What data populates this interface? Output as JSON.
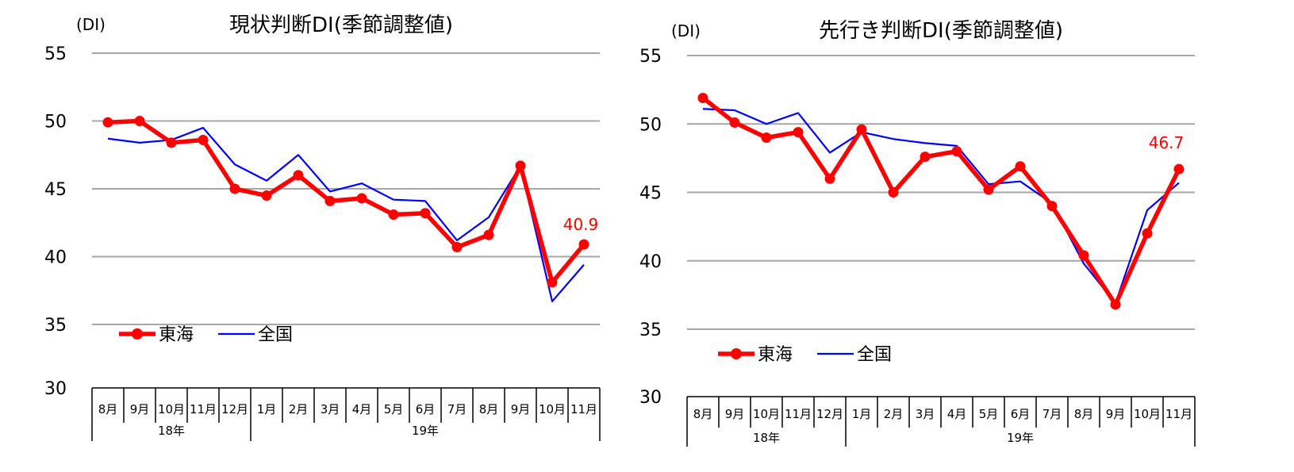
{
  "chart_data": [
    {
      "type": "line",
      "title": "現状判断DI(季節調整値)",
      "ylabel": "(DI)",
      "ylim": [
        30,
        55
      ],
      "yticks": [
        "30",
        "35",
        "40",
        "45",
        "50",
        "55"
      ],
      "grid": true,
      "legend_position": "bottom-left",
      "categories": [
        "8月",
        "9月",
        "10月",
        "11月",
        "12月",
        "1月",
        "2月",
        "3月",
        "4月",
        "5月",
        "6月",
        "7月",
        "8月",
        "9月",
        "10月",
        "11月"
      ],
      "year_groups": [
        {
          "label": "18年",
          "count": 5
        },
        {
          "label": "19年",
          "count": 11
        }
      ],
      "series": [
        {
          "name": "東海",
          "color": "#ff0000",
          "values": [
            49.9,
            50.0,
            48.4,
            48.6,
            45.0,
            44.5,
            46.0,
            44.1,
            44.3,
            43.1,
            43.2,
            40.7,
            41.6,
            46.7,
            38.1,
            40.9
          ]
        },
        {
          "name": "全国",
          "color": "#0000ff",
          "values": [
            48.7,
            48.4,
            48.6,
            49.5,
            46.8,
            45.6,
            47.5,
            44.8,
            45.4,
            44.2,
            44.1,
            41.2,
            42.9,
            46.7,
            36.7,
            39.4
          ]
        }
      ],
      "annotation": {
        "text": "40.9",
        "color": "#ff0000"
      }
    },
    {
      "type": "line",
      "title": "先行き判断DI(季節調整値)",
      "ylabel": "(DI)",
      "ylim": [
        30,
        55
      ],
      "yticks": [
        "30",
        "35",
        "40",
        "45",
        "50",
        "55"
      ],
      "grid": true,
      "legend_position": "bottom-left",
      "categories": [
        "8月",
        "9月",
        "10月",
        "11月",
        "12月",
        "1月",
        "2月",
        "3月",
        "4月",
        "5月",
        "6月",
        "7月",
        "8月",
        "9月",
        "10月",
        "11月"
      ],
      "year_groups": [
        {
          "label": "18年",
          "count": 5
        },
        {
          "label": "19年",
          "count": 11
        }
      ],
      "series": [
        {
          "name": "東海",
          "color": "#ff0000",
          "values": [
            51.9,
            50.1,
            49.0,
            49.4,
            46.0,
            49.6,
            45.0,
            47.6,
            48.0,
            45.2,
            46.9,
            44.0,
            40.4,
            36.8,
            42.0,
            46.7
          ]
        },
        {
          "name": "全国",
          "color": "#0000ff",
          "values": [
            51.1,
            51.0,
            50.0,
            50.8,
            47.9,
            49.4,
            48.9,
            48.6,
            48.4,
            45.6,
            45.8,
            44.2,
            39.8,
            36.9,
            43.7,
            45.7
          ]
        }
      ],
      "annotation": {
        "text": "46.7",
        "color": "#ff0000"
      }
    }
  ]
}
